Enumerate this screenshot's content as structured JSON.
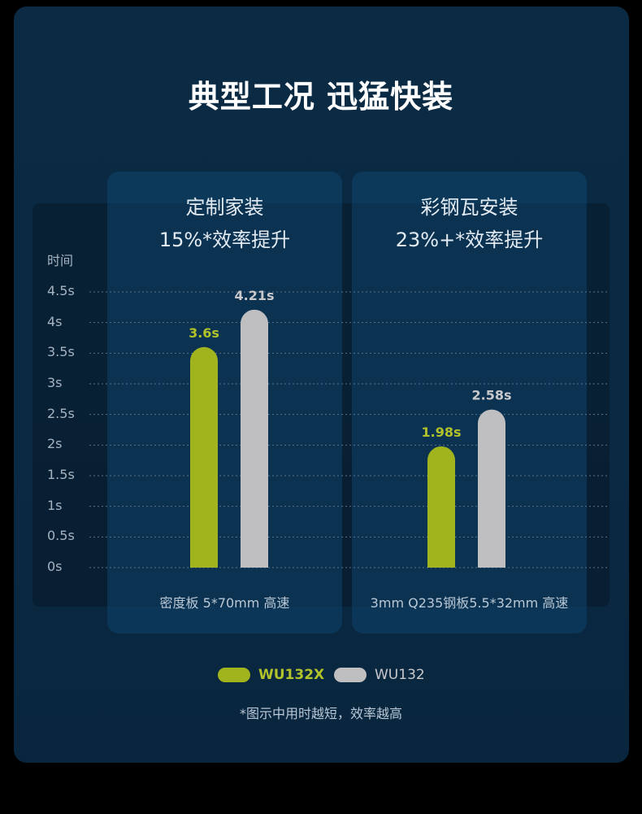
{
  "title": "典型工况 迅猛快装",
  "colors": {
    "wu132x": "#a1b31d",
    "wu132": "#bfbfc2",
    "value_wu132x": "#b2c22a",
    "value_wu132": "#c9c9cc"
  },
  "panels": [
    {
      "title": "定制家装",
      "subtitle": "15%*效率提升",
      "condition": "密度板 5*70mm 高速"
    },
    {
      "title": "彩钢瓦安装",
      "subtitle": "23%+*效率提升",
      "condition": "3mm Q235钢板5.5*32mm 高速"
    }
  ],
  "legend": [
    {
      "label": "WU132X"
    },
    {
      "label": "WU132"
    }
  ],
  "footnote": "*图示中用时越短，效率越高",
  "chart_data": {
    "type": "bar",
    "ylabel": "时间",
    "ylim": [
      0,
      4.5
    ],
    "yticks": [
      "0s",
      "0.5s",
      "1s",
      "1.5s",
      "2s",
      "2.5s",
      "3s",
      "3.5s",
      "4s",
      "4.5s"
    ],
    "categories": [
      "密度板 5*70mm 高速",
      "3mm Q235钢板5.5*32mm 高速"
    ],
    "series": [
      {
        "name": "WU132X",
        "values": [
          3.6,
          1.98
        ],
        "labels": [
          "3.6s",
          "1.98s"
        ]
      },
      {
        "name": "WU132",
        "values": [
          4.21,
          2.58
        ],
        "labels": [
          "4.21s",
          "2.58s"
        ]
      }
    ],
    "grid": true,
    "legend_position": "bottom"
  }
}
